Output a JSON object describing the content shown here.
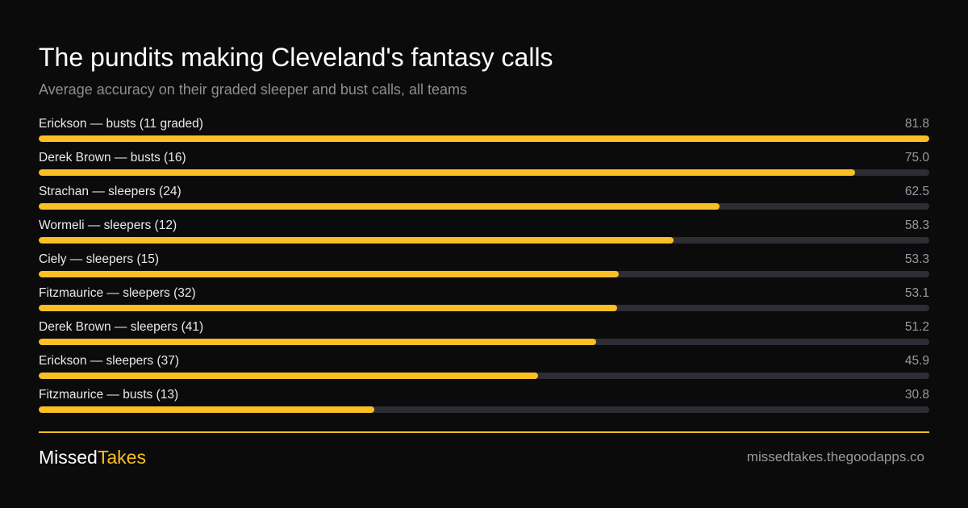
{
  "header": {
    "title": "The pundits making Cleveland's fantasy calls",
    "subtitle": "Average accuracy on their graded sleeper and bust calls, all teams"
  },
  "chart_data": {
    "type": "bar",
    "orientation": "horizontal",
    "categories": [
      "Erickson — busts (11 graded)",
      "Derek Brown — busts (16)",
      "Strachan — sleepers (24)",
      "Wormeli — sleepers (12)",
      "Ciely — sleepers (15)",
      "Fitzmaurice — sleepers (32)",
      "Derek Brown — sleepers (41)",
      "Erickson — sleepers (37)",
      "Fitzmaurice — busts (13)"
    ],
    "values": [
      81.8,
      75.0,
      62.5,
      58.3,
      53.3,
      53.1,
      51.2,
      45.9,
      30.8
    ],
    "value_labels": [
      "81.8",
      "75.0",
      "62.5",
      "58.3",
      "53.3",
      "53.1",
      "51.2",
      "45.9",
      "30.8"
    ],
    "xlim": [
      0,
      81.8
    ],
    "grid": false,
    "colors": {
      "bar": "#fbbf24",
      "track": "#2e2d33"
    }
  },
  "footer": {
    "brand_part1": "Missed",
    "brand_part2": "Takes",
    "site": "missedtakes.thegoodapps.co"
  },
  "colors": {
    "background": "#0b0b0b",
    "accent": "#fbbf24"
  }
}
